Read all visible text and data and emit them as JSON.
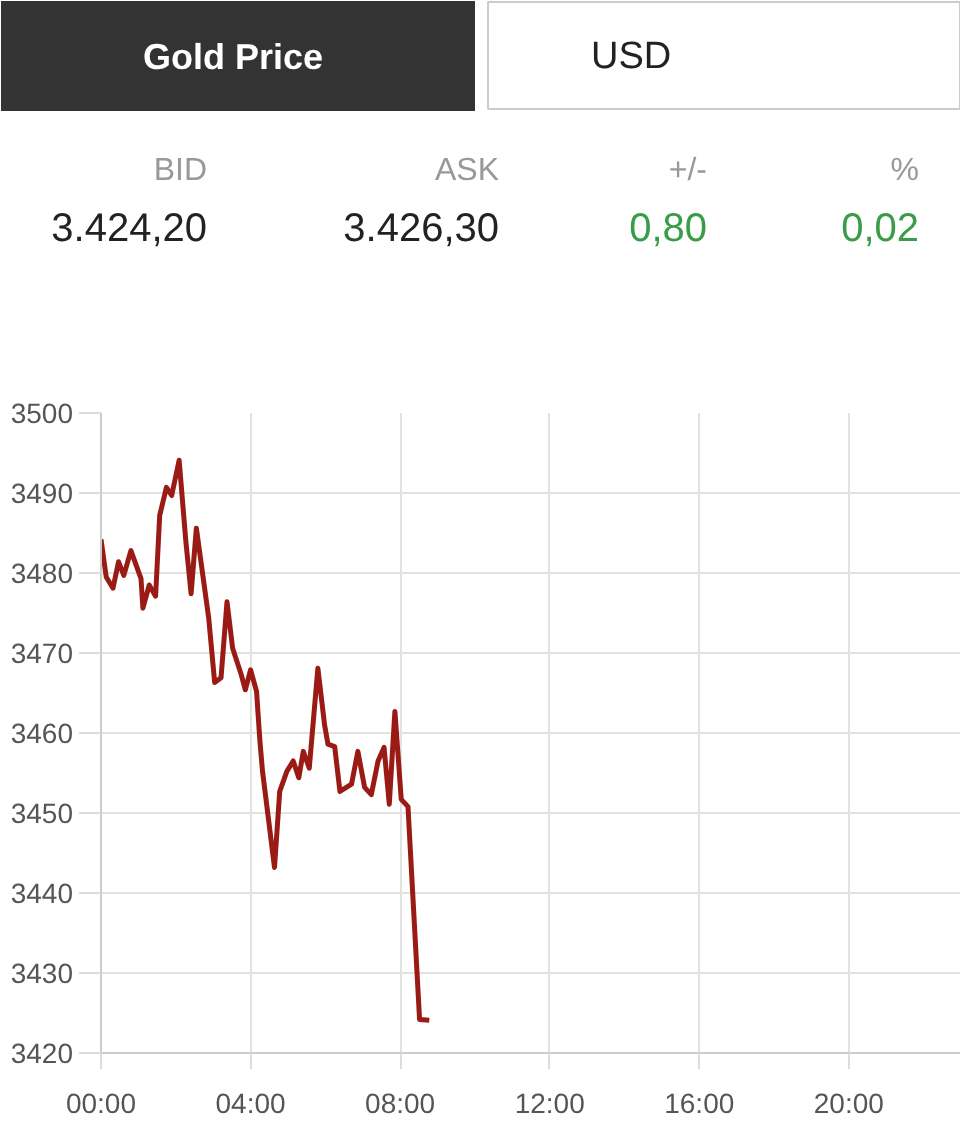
{
  "chart_data": {
    "type": "line",
    "title": "Gold Price",
    "annotations": [
      "USD",
      "BID",
      "ASK",
      "+/-",
      "%",
      "3.424,20",
      "3.426,30",
      "0,80",
      "0,02"
    ],
    "x": [
      0,
      0.14,
      0.32,
      0.47,
      0.61,
      0.8,
      1.07,
      1.12,
      1.29,
      1.46,
      1.57,
      1.75,
      1.89,
      2.09,
      2.27,
      2.41,
      2.55,
      2.88,
      3.04,
      3.21,
      3.37,
      3.52,
      3.75,
      3.86,
      4.0,
      4.16,
      4.25,
      4.32,
      4.64,
      4.78,
      4.97,
      5.14,
      5.29,
      5.41,
      5.57,
      5.8,
      5.98,
      6.07,
      6.25,
      6.39,
      6.7,
      6.87,
      7.05,
      7.23,
      7.41,
      7.57,
      7.71,
      7.86,
      8.03,
      8.21,
      8.52,
      8.78
    ],
    "values": [
      3484.2,
      3479.5,
      3478.1,
      3481.4,
      3479.7,
      3482.8,
      3479.3,
      3475.6,
      3478.5,
      3477.1,
      3487.2,
      3490.7,
      3489.7,
      3494.1,
      3483.9,
      3477.4,
      3485.6,
      3474.4,
      3466.3,
      3466.9,
      3476.4,
      3470.6,
      3467.3,
      3465.4,
      3467.9,
      3465.2,
      3459.0,
      3455.2,
      3443.2,
      3452.7,
      3455.2,
      3456.5,
      3454.4,
      3457.7,
      3455.6,
      3468.1,
      3461.0,
      3458.6,
      3458.3,
      3452.7,
      3453.6,
      3457.7,
      3453.2,
      3452.3,
      3456.5,
      3458.2,
      3451.1,
      3462.7,
      3451.7,
      3450.8,
      3424.2,
      3424.1
    ],
    "color": "#9a1b16",
    "xlim": [
      0,
      23
    ],
    "ylim": [
      3420,
      3500
    ],
    "xticks": [
      {
        "value": 0,
        "label": "00:00"
      },
      {
        "value": 4,
        "label": "04:00"
      },
      {
        "value": 8,
        "label": "08:00"
      },
      {
        "value": 12,
        "label": "12:00"
      },
      {
        "value": 16,
        "label": "16:00"
      },
      {
        "value": 20,
        "label": "20:00"
      }
    ],
    "yticks": [
      3420,
      3430,
      3440,
      3450,
      3460,
      3470,
      3480,
      3490,
      3500
    ],
    "grid": true
  }
}
